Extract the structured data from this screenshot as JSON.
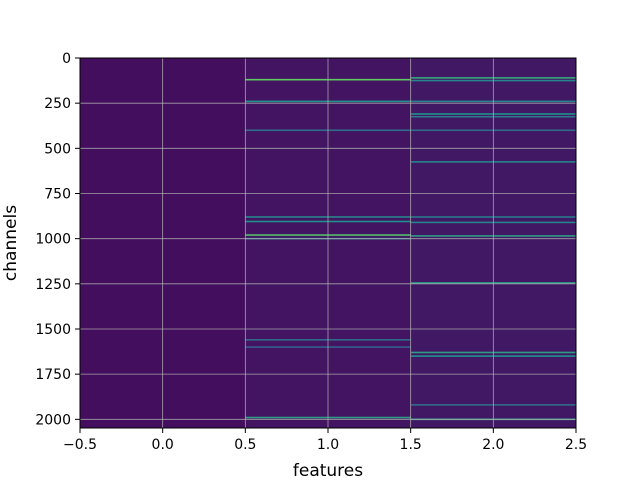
{
  "chart_data": {
    "type": "heatmap",
    "title": "",
    "xlabel": "features",
    "ylabel": "channels",
    "xlim": [
      -0.5,
      2.5
    ],
    "ylim": [
      2048,
      0
    ],
    "y_inverted": true,
    "x_ticks": [
      -0.5,
      0.0,
      0.5,
      1.0,
      1.5,
      2.0,
      2.5
    ],
    "x_tick_labels": [
      "−0.5",
      "0.0",
      "0.5",
      "1.0",
      "1.5",
      "2.0",
      "2.5"
    ],
    "y_ticks": [
      0,
      250,
      500,
      750,
      1000,
      1250,
      1500,
      1750,
      2000
    ],
    "y_tick_labels": [
      "0",
      "250",
      "500",
      "750",
      "1000",
      "1250",
      "1500",
      "1750",
      "2000"
    ],
    "grid": true,
    "colormap": "viridis",
    "columns": [
      {
        "feature": 0,
        "background": 0.04,
        "bright_rows": []
      },
      {
        "feature": 1,
        "background": 0.06,
        "bright_rows": [
          {
            "channel": 120,
            "value": 0.75
          },
          {
            "channel": 240,
            "value": 0.5
          },
          {
            "channel": 400,
            "value": 0.35
          },
          {
            "channel": 880,
            "value": 0.45
          },
          {
            "channel": 905,
            "value": 0.5
          },
          {
            "channel": 980,
            "value": 0.7
          },
          {
            "channel": 1000,
            "value": 0.4
          },
          {
            "channel": 1560,
            "value": 0.35
          },
          {
            "channel": 1600,
            "value": 0.3
          },
          {
            "channel": 1990,
            "value": 0.55
          }
        ]
      },
      {
        "feature": 2,
        "background": 0.07,
        "bright_rows": [
          {
            "channel": 110,
            "value": 0.6
          },
          {
            "channel": 125,
            "value": 0.45
          },
          {
            "channel": 240,
            "value": 0.45
          },
          {
            "channel": 310,
            "value": 0.5
          },
          {
            "channel": 325,
            "value": 0.4
          },
          {
            "channel": 400,
            "value": 0.35
          },
          {
            "channel": 575,
            "value": 0.45
          },
          {
            "channel": 880,
            "value": 0.4
          },
          {
            "channel": 910,
            "value": 0.45
          },
          {
            "channel": 985,
            "value": 0.55
          },
          {
            "channel": 1245,
            "value": 0.55
          },
          {
            "channel": 1630,
            "value": 0.55
          },
          {
            "channel": 1650,
            "value": 0.5
          },
          {
            "channel": 1920,
            "value": 0.35
          },
          {
            "channel": 2000,
            "value": 0.55
          }
        ]
      }
    ]
  }
}
